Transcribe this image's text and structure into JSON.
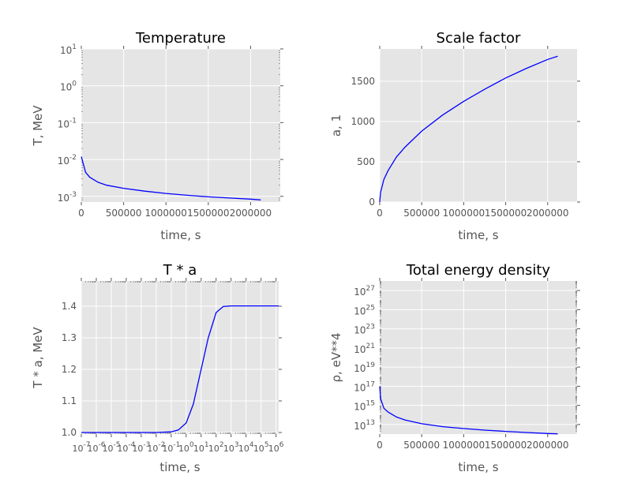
{
  "style": {
    "axes_bg": "#e5e5e5",
    "grid": "#ffffff",
    "line": "#0000ff",
    "text": "#555555"
  },
  "chart_data": [
    {
      "type": "line",
      "title": "Temperature",
      "xlabel": "time, s",
      "ylabel": "T, MeV",
      "xscale": "linear",
      "yscale": "log",
      "xlim": [
        0,
        2350000
      ],
      "ylim": [
        0.0007,
        10
      ],
      "grid": true,
      "xticks": [
        0,
        500000,
        1000000,
        1500000,
        2000000
      ],
      "xtick_labels": [
        "0",
        "500000",
        "1000000",
        "1500000",
        "2000000"
      ],
      "yticks": [
        0.001,
        0.01,
        0.1,
        1,
        10
      ],
      "ytick_labels": [
        [
          "10",
          "-3"
        ],
        [
          "10",
          "-2"
        ],
        [
          "10",
          "-1"
        ],
        [
          "10",
          "0"
        ],
        [
          "10",
          "1"
        ]
      ],
      "series": [
        {
          "x": [
            0,
            50000,
            100000,
            200000,
            300000,
            500000,
            750000,
            1000000,
            1250000,
            1500000,
            1750000,
            2000000,
            2120000
          ],
          "y": [
            0.012,
            0.0045,
            0.0033,
            0.0024,
            0.002,
            0.00165,
            0.00138,
            0.0012,
            0.00107,
            0.00097,
            0.0009,
            0.00084,
            0.0008
          ]
        }
      ]
    },
    {
      "type": "line",
      "title": "Scale factor",
      "xlabel": "time, s",
      "ylabel": "a, 1",
      "xscale": "linear",
      "yscale": "linear",
      "xlim": [
        0,
        2350000
      ],
      "ylim": [
        0,
        1900
      ],
      "grid": true,
      "xticks": [
        0,
        500000,
        1000000,
        1500000,
        2000000
      ],
      "xtick_labels": [
        "0",
        "500000",
        "1000000",
        "1500000",
        "2000000"
      ],
      "yticks": [
        0,
        500,
        1000,
        1500
      ],
      "ytick_labels": [
        "0",
        "500",
        "1000",
        "1500"
      ],
      "series": [
        {
          "x": [
            0,
            10000,
            50000,
            100000,
            200000,
            300000,
            500000,
            750000,
            1000000,
            1250000,
            1500000,
            1750000,
            2000000,
            2120000
          ],
          "y": [
            0,
            120,
            280,
            390,
            560,
            680,
            880,
            1080,
            1250,
            1400,
            1540,
            1660,
            1770,
            1810
          ]
        }
      ]
    },
    {
      "type": "line",
      "title": "T * a",
      "xlabel": "time, s",
      "ylabel": "T * a, MeV",
      "xscale": "log",
      "yscale": "linear",
      "xlim": [
        1e-07,
        1500000.0
      ],
      "ylim": [
        0.995,
        1.48
      ],
      "grid": true,
      "xticks": [
        1e-07,
        1e-06,
        1e-05,
        0.0001,
        0.001,
        0.01,
        0.1,
        1,
        10,
        100,
        1000,
        10000,
        100000,
        1000000
      ],
      "xtick_labels": [
        [
          "10",
          "-7"
        ],
        [
          "10",
          "-6"
        ],
        [
          "10",
          "-5"
        ],
        [
          "10",
          "-4"
        ],
        [
          "10",
          "-3"
        ],
        [
          "10",
          "-2"
        ],
        [
          "10",
          "-1"
        ],
        [
          "10",
          "0"
        ],
        [
          "10",
          "1"
        ],
        [
          "10",
          "2"
        ],
        [
          "10",
          "3"
        ],
        [
          "10",
          "4"
        ],
        [
          "10",
          "5"
        ],
        [
          "10",
          "6"
        ]
      ],
      "yticks": [
        1.0,
        1.1,
        1.2,
        1.3,
        1.4
      ],
      "ytick_labels": [
        "1.0",
        "1.1",
        "1.2",
        "1.3",
        "1.4"
      ],
      "series": [
        {
          "x": [
            1e-07,
            0.001,
            0.01,
            0.1,
            0.3,
            1,
            3,
            10,
            30,
            100,
            300,
            1000,
            10000.0,
            100000.0,
            1500000.0
          ],
          "y": [
            1.0,
            1.0,
            1.0,
            1.002,
            1.008,
            1.03,
            1.09,
            1.2,
            1.3,
            1.38,
            1.399,
            1.401,
            1.401,
            1.401,
            1.401
          ]
        }
      ]
    },
    {
      "type": "line",
      "title": "Total energy density",
      "xlabel": "time, s",
      "ylabel": "ρ, eV**4",
      "xscale": "linear",
      "yscale": "log",
      "xlim": [
        0,
        2350000
      ],
      "ylim": [
        1000000000000.0,
        1e+28
      ],
      "grid": true,
      "xticks": [
        0,
        500000,
        1000000,
        1500000,
        2000000
      ],
      "xtick_labels": [
        "0",
        "500000",
        "1000000",
        "1500000",
        "2000000"
      ],
      "yticks": [
        10000000000000.0,
        1000000000000000.0,
        1e+17,
        1e+19,
        1e+21,
        1e+23,
        1e+25,
        1e+27
      ],
      "ytick_labels": [
        [
          "10",
          "13"
        ],
        [
          "10",
          "15"
        ],
        [
          "10",
          "17"
        ],
        [
          "10",
          "19"
        ],
        [
          "10",
          "21"
        ],
        [
          "10",
          "23"
        ],
        [
          "10",
          "25"
        ],
        [
          "10",
          "27"
        ]
      ],
      "series": [
        {
          "x": [
            0,
            10000,
            50000,
            100000,
            200000,
            300000,
            500000,
            750000,
            1000000,
            1250000,
            1500000,
            1750000,
            2000000,
            2120000
          ],
          "y": [
            1e+17,
            5000000000000000.0,
            500000000000000.0,
            200000000000000.0,
            60000000000000.0,
            30000000000000.0,
            12000000000000.0,
            6000000000000.0,
            3800000000000.0,
            2600000000000.0,
            1900000000000.0,
            1450000000000.0,
            1150000000000.0,
            1050000000000.0
          ]
        }
      ]
    }
  ]
}
